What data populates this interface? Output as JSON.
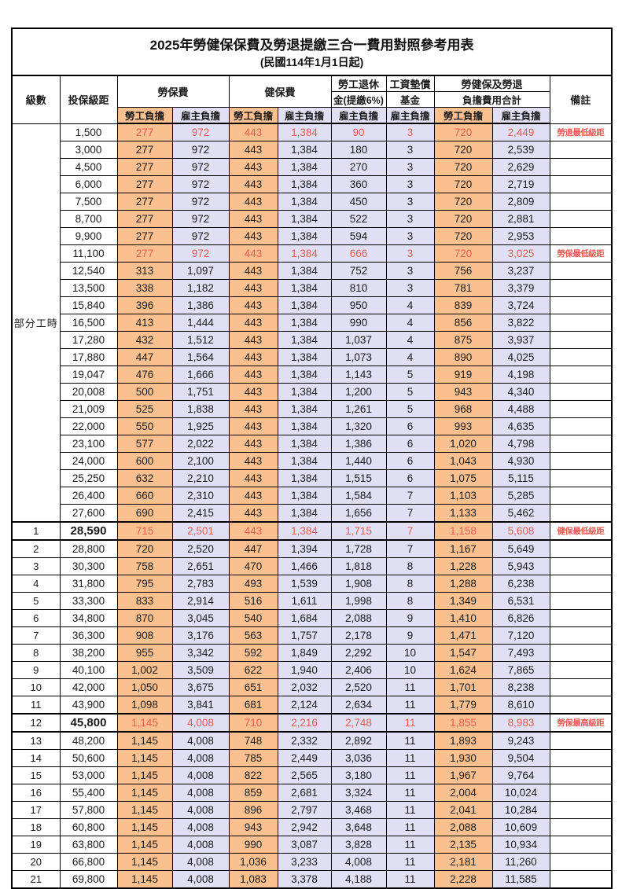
{
  "title": "2025年勞健保保費及勞退提繳三合一費用對照參考用表",
  "subtitle": "(民國114年1月1日起)",
  "colors": {
    "employee_bg": "#FAC08F",
    "employer_bg": "#E0DFF3",
    "red_text": "#E95C55"
  },
  "header": {
    "level": "級數",
    "salary_bracket": "投保級距",
    "labor_insurance": "勞保費",
    "health_insurance": "健保費",
    "pension_line1": "勞工退休",
    "pension_line2": "金(提繳6%)",
    "wage_fund_line1": "工資墊償",
    "wage_fund_line2": "基金",
    "total_line1": "勞健保及勞退",
    "total_line2": "負擔費用合計",
    "remarks": "備註",
    "employee": "勞工負擔",
    "employer": "雇主負擔"
  },
  "part_time_label": "部分工時",
  "part_time_rowspan": 23,
  "rows": [
    {
      "level": "",
      "salary": "1,500",
      "values": [
        "277",
        "972",
        "443",
        "1,384",
        "90",
        "3",
        "720",
        "2,449"
      ],
      "note": "勞退最低級距",
      "red": true
    },
    {
      "level": "",
      "salary": "3,000",
      "values": [
        "277",
        "972",
        "443",
        "1,384",
        "180",
        "3",
        "720",
        "2,539"
      ]
    },
    {
      "level": "",
      "salary": "4,500",
      "values": [
        "277",
        "972",
        "443",
        "1,384",
        "270",
        "3",
        "720",
        "2,629"
      ]
    },
    {
      "level": "",
      "salary": "6,000",
      "values": [
        "277",
        "972",
        "443",
        "1,384",
        "360",
        "3",
        "720",
        "2,719"
      ]
    },
    {
      "level": "",
      "salary": "7,500",
      "values": [
        "277",
        "972",
        "443",
        "1,384",
        "450",
        "3",
        "720",
        "2,809"
      ]
    },
    {
      "level": "",
      "salary": "8,700",
      "values": [
        "277",
        "972",
        "443",
        "1,384",
        "522",
        "3",
        "720",
        "2,881"
      ]
    },
    {
      "level": "",
      "salary": "9,900",
      "values": [
        "277",
        "972",
        "443",
        "1,384",
        "594",
        "3",
        "720",
        "2,953"
      ]
    },
    {
      "level": "",
      "salary": "11,100",
      "values": [
        "277",
        "972",
        "443",
        "1,384",
        "666",
        "3",
        "720",
        "3,025"
      ],
      "note": "勞保最低級距",
      "red": true
    },
    {
      "level": "",
      "salary": "12,540",
      "values": [
        "313",
        "1,097",
        "443",
        "1,384",
        "752",
        "3",
        "756",
        "3,237"
      ]
    },
    {
      "level": "",
      "salary": "13,500",
      "values": [
        "338",
        "1,182",
        "443",
        "1,384",
        "810",
        "3",
        "781",
        "3,379"
      ]
    },
    {
      "level": "",
      "salary": "15,840",
      "values": [
        "396",
        "1,386",
        "443",
        "1,384",
        "950",
        "4",
        "839",
        "3,724"
      ]
    },
    {
      "level": "",
      "salary": "16,500",
      "values": [
        "413",
        "1,444",
        "443",
        "1,384",
        "990",
        "4",
        "856",
        "3,822"
      ]
    },
    {
      "level": "",
      "salary": "17,280",
      "values": [
        "432",
        "1,512",
        "443",
        "1,384",
        "1,037",
        "4",
        "875",
        "3,937"
      ]
    },
    {
      "level": "",
      "salary": "17,880",
      "values": [
        "447",
        "1,564",
        "443",
        "1,384",
        "1,073",
        "4",
        "890",
        "4,025"
      ]
    },
    {
      "level": "",
      "salary": "19,047",
      "values": [
        "476",
        "1,666",
        "443",
        "1,384",
        "1,143",
        "5",
        "919",
        "4,198"
      ]
    },
    {
      "level": "",
      "salary": "20,008",
      "values": [
        "500",
        "1,751",
        "443",
        "1,384",
        "1,200",
        "5",
        "943",
        "4,340"
      ]
    },
    {
      "level": "",
      "salary": "21,009",
      "values": [
        "525",
        "1,838",
        "443",
        "1,384",
        "1,261",
        "5",
        "968",
        "4,488"
      ]
    },
    {
      "level": "",
      "salary": "22,000",
      "values": [
        "550",
        "1,925",
        "443",
        "1,384",
        "1,320",
        "6",
        "993",
        "4,635"
      ]
    },
    {
      "level": "",
      "salary": "23,100",
      "values": [
        "577",
        "2,022",
        "443",
        "1,384",
        "1,386",
        "6",
        "1,020",
        "4,798"
      ]
    },
    {
      "level": "",
      "salary": "24,000",
      "values": [
        "600",
        "2,100",
        "443",
        "1,384",
        "1,440",
        "6",
        "1,043",
        "4,930"
      ]
    },
    {
      "level": "",
      "salary": "25,250",
      "values": [
        "632",
        "2,210",
        "443",
        "1,384",
        "1,515",
        "6",
        "1,075",
        "5,115"
      ]
    },
    {
      "level": "",
      "salary": "26,400",
      "values": [
        "660",
        "2,310",
        "443",
        "1,384",
        "1,584",
        "7",
        "1,103",
        "5,285"
      ]
    },
    {
      "level": "",
      "salary": "27,600",
      "values": [
        "690",
        "2,415",
        "443",
        "1,384",
        "1,656",
        "7",
        "1,133",
        "5,462"
      ]
    },
    {
      "level": "1",
      "salary": "28,590",
      "values": [
        "715",
        "2,501",
        "443",
        "1,384",
        "1,715",
        "7",
        "1,158",
        "5,608"
      ],
      "note": "健保最低級距",
      "red": true,
      "thick": true,
      "bold": true
    },
    {
      "level": "2",
      "salary": "28,800",
      "values": [
        "720",
        "2,520",
        "447",
        "1,394",
        "1,728",
        "7",
        "1,167",
        "5,649"
      ]
    },
    {
      "level": "3",
      "salary": "30,300",
      "values": [
        "758",
        "2,651",
        "470",
        "1,466",
        "1,818",
        "8",
        "1,228",
        "5,943"
      ]
    },
    {
      "level": "4",
      "salary": "31,800",
      "values": [
        "795",
        "2,783",
        "493",
        "1,539",
        "1,908",
        "8",
        "1,288",
        "6,238"
      ]
    },
    {
      "level": "5",
      "salary": "33,300",
      "values": [
        "833",
        "2,914",
        "516",
        "1,611",
        "1,998",
        "8",
        "1,349",
        "6,531"
      ]
    },
    {
      "level": "6",
      "salary": "34,800",
      "values": [
        "870",
        "3,045",
        "540",
        "1,684",
        "2,088",
        "9",
        "1,410",
        "6,826"
      ]
    },
    {
      "level": "7",
      "salary": "36,300",
      "values": [
        "908",
        "3,176",
        "563",
        "1,757",
        "2,178",
        "9",
        "1,471",
        "7,120"
      ]
    },
    {
      "level": "8",
      "salary": "38,200",
      "values": [
        "955",
        "3,342",
        "592",
        "1,849",
        "2,292",
        "10",
        "1,547",
        "7,493"
      ]
    },
    {
      "level": "9",
      "salary": "40,100",
      "values": [
        "1,002",
        "3,509",
        "622",
        "1,940",
        "2,406",
        "10",
        "1,624",
        "7,865"
      ]
    },
    {
      "level": "10",
      "salary": "42,000",
      "values": [
        "1,050",
        "3,675",
        "651",
        "2,032",
        "2,520",
        "11",
        "1,701",
        "8,238"
      ]
    },
    {
      "level": "11",
      "salary": "43,900",
      "values": [
        "1,098",
        "3,841",
        "681",
        "2,124",
        "2,634",
        "11",
        "1,779",
        "8,610"
      ]
    },
    {
      "level": "12",
      "salary": "45,800",
      "values": [
        "1,145",
        "4,008",
        "710",
        "2,216",
        "2,748",
        "11",
        "1,855",
        "8,983"
      ],
      "note": "勞保最高級距",
      "red": true,
      "thick": true,
      "bold": true
    },
    {
      "level": "13",
      "salary": "48,200",
      "values": [
        "1,145",
        "4,008",
        "748",
        "2,332",
        "2,892",
        "11",
        "1,893",
        "9,243"
      ]
    },
    {
      "level": "14",
      "salary": "50,600",
      "values": [
        "1,145",
        "4,008",
        "785",
        "2,449",
        "3,036",
        "11",
        "1,930",
        "9,504"
      ]
    },
    {
      "level": "15",
      "salary": "53,000",
      "values": [
        "1,145",
        "4,008",
        "822",
        "2,565",
        "3,180",
        "11",
        "1,967",
        "9,764"
      ]
    },
    {
      "level": "16",
      "salary": "55,400",
      "values": [
        "1,145",
        "4,008",
        "859",
        "2,681",
        "3,324",
        "11",
        "2,004",
        "10,024"
      ]
    },
    {
      "level": "17",
      "salary": "57,800",
      "values": [
        "1,145",
        "4,008",
        "896",
        "2,797",
        "3,468",
        "11",
        "2,041",
        "10,284"
      ]
    },
    {
      "level": "18",
      "salary": "60,800",
      "values": [
        "1,145",
        "4,008",
        "943",
        "2,942",
        "3,648",
        "11",
        "2,088",
        "10,609"
      ]
    },
    {
      "level": "19",
      "salary": "63,800",
      "values": [
        "1,145",
        "4,008",
        "990",
        "3,087",
        "3,828",
        "11",
        "2,135",
        "10,934"
      ]
    },
    {
      "level": "20",
      "salary": "66,800",
      "values": [
        "1,145",
        "4,008",
        "1,036",
        "3,233",
        "4,008",
        "11",
        "2,181",
        "11,260"
      ]
    },
    {
      "level": "21",
      "salary": "69,800",
      "values": [
        "1,145",
        "4,008",
        "1,083",
        "3,378",
        "4,188",
        "11",
        "2,228",
        "11,585"
      ]
    }
  ]
}
